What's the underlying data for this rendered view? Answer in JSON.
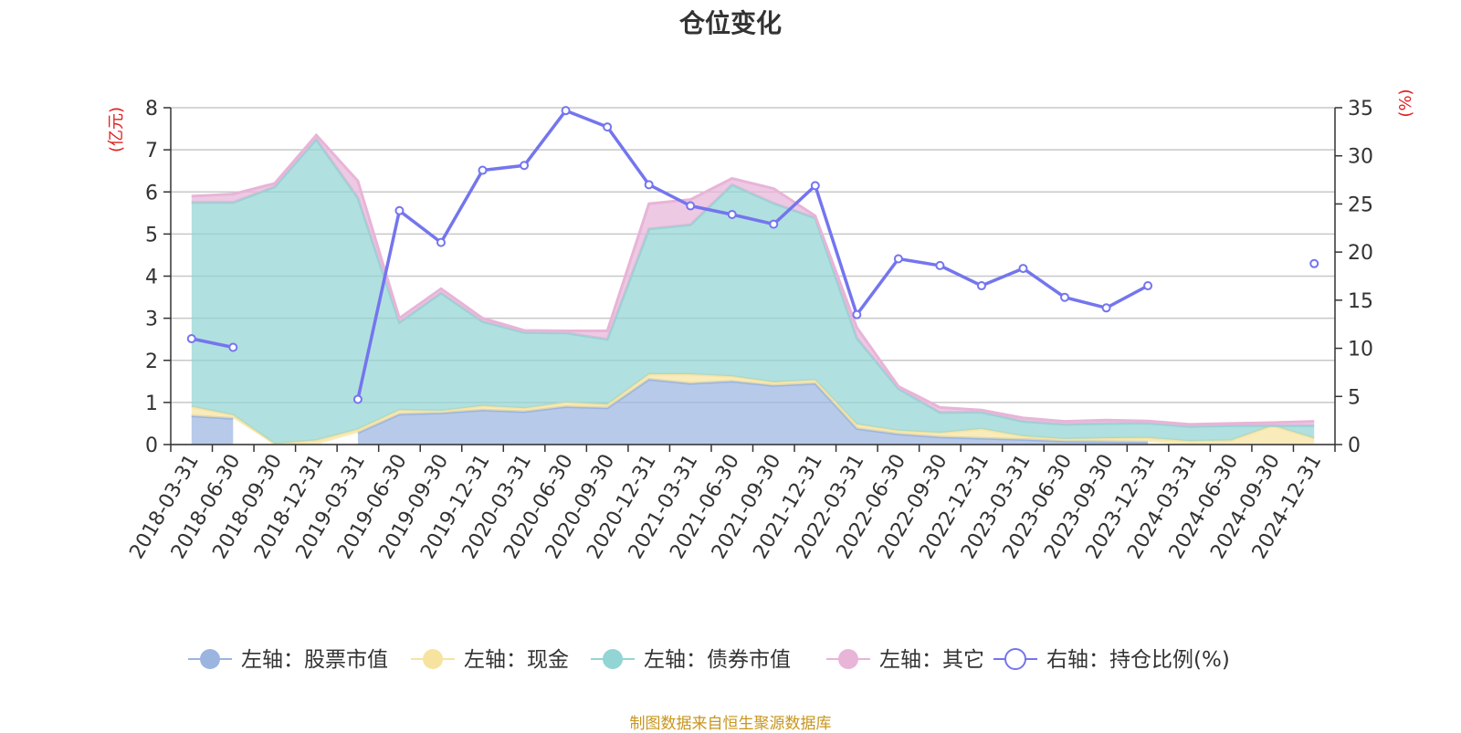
{
  "chart_data": {
    "type": "area",
    "title": "仓位变化",
    "left_axis_unit": "(亿元)",
    "right_axis_unit": "(%)",
    "left_ylim": [
      0,
      8
    ],
    "left_ticks": [
      "0",
      "1",
      "2",
      "3",
      "4",
      "5",
      "6",
      "7",
      "8"
    ],
    "right_ylim": [
      0,
      35
    ],
    "right_ticks": [
      "0",
      "5",
      "10",
      "15",
      "20",
      "25",
      "30",
      "35"
    ],
    "grid": true,
    "legend_position": "bottom",
    "categories": [
      "2018-03-31",
      "2018-06-30",
      "2018-09-30",
      "2018-12-31",
      "2019-03-31",
      "2019-06-30",
      "2019-09-30",
      "2019-12-31",
      "2020-03-31",
      "2020-06-30",
      "2020-09-30",
      "2020-12-31",
      "2021-03-31",
      "2021-06-30",
      "2021-09-30",
      "2021-12-31",
      "2022-03-31",
      "2022-06-30",
      "2022-09-30",
      "2022-12-31",
      "2023-03-31",
      "2023-06-30",
      "2023-09-30",
      "2023-12-31",
      "2024-03-31",
      "2024-06-30",
      "2024-09-30",
      "2024-12-31"
    ],
    "series": [
      {
        "name": "左轴：股票市值",
        "axis": "left",
        "color": "#9bb5e0",
        "values": [
          0.68,
          0.62,
          null,
          null,
          0.28,
          0.72,
          0.75,
          0.82,
          0.78,
          0.9,
          0.87,
          1.55,
          1.45,
          1.5,
          1.4,
          1.45,
          0.38,
          0.25,
          0.18,
          0.15,
          0.12,
          0.08,
          0.07,
          0.06,
          null,
          null,
          null,
          null
        ]
      },
      {
        "name": "左轴：现金",
        "axis": "left",
        "color": "#f7e3a0",
        "values": [
          0.22,
          0.08,
          0.02,
          0.1,
          0.08,
          0.1,
          0.05,
          0.1,
          0.08,
          0.1,
          0.08,
          0.12,
          0.22,
          0.12,
          0.08,
          0.08,
          0.1,
          0.08,
          0.1,
          0.22,
          0.08,
          0.05,
          0.08,
          0.1,
          0.08,
          0.1,
          0.45,
          0.15
        ]
      },
      {
        "name": "左轴：债券市值",
        "axis": "left",
        "color": "#93d4d4",
        "values": [
          4.85,
          5.05,
          6.1,
          7.15,
          5.5,
          2.08,
          2.8,
          2.0,
          1.8,
          1.65,
          1.55,
          3.45,
          3.55,
          4.55,
          4.25,
          3.85,
          2.05,
          1.0,
          0.48,
          0.4,
          0.35,
          0.35,
          0.35,
          0.35,
          0.35,
          0.35,
          0.0,
          0.3
        ]
      },
      {
        "name": "左轴：其它",
        "axis": "left",
        "color": "#e8b4d8",
        "values": [
          0.15,
          0.2,
          0.08,
          0.1,
          0.4,
          0.1,
          0.1,
          0.08,
          0.05,
          0.05,
          0.2,
          0.6,
          0.6,
          0.15,
          0.35,
          0.05,
          0.25,
          0.05,
          0.12,
          0.05,
          0.08,
          0.07,
          0.08,
          0.05,
          0.05,
          0.05,
          0.07,
          0.1
        ]
      },
      {
        "name": "右轴：持仓比例(%)",
        "axis": "right",
        "color": "#7475ee",
        "values": [
          11.0,
          10.1,
          null,
          null,
          4.7,
          24.3,
          21.0,
          28.5,
          29.0,
          34.7,
          33.0,
          27.0,
          24.8,
          23.9,
          22.9,
          26.9,
          13.5,
          19.3,
          18.6,
          16.5,
          18.3,
          15.3,
          14.2,
          16.5,
          null,
          null,
          null,
          18.8
        ]
      }
    ]
  },
  "source_note": "制图数据来自恒生聚源数据库"
}
